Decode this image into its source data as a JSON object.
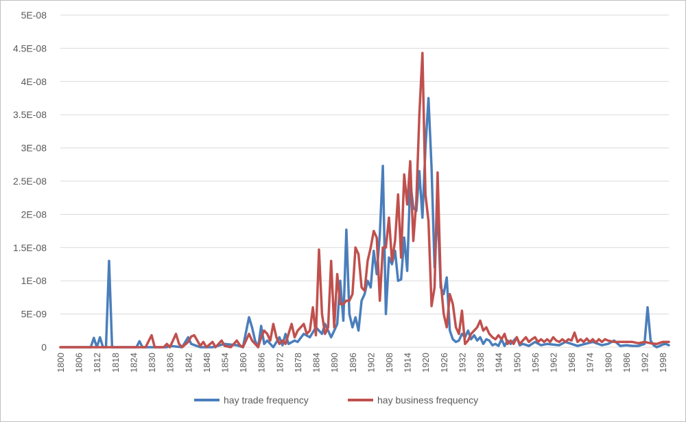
{
  "chart_data": {
    "type": "line",
    "title": "",
    "xlabel": "",
    "ylabel": "",
    "xlim": [
      1800,
      2000
    ],
    "ylim": [
      0,
      5e-08
    ],
    "grid": true,
    "legend_position": "bottom",
    "y_ticks": [
      {
        "value": 0,
        "label": "0"
      },
      {
        "value": 5e-09,
        "label": "5E-09"
      },
      {
        "value": 1e-08,
        "label": "1E-08"
      },
      {
        "value": 1.5e-08,
        "label": "1.5E-08"
      },
      {
        "value": 2e-08,
        "label": "2E-08"
      },
      {
        "value": 2.5e-08,
        "label": "2.5E-08"
      },
      {
        "value": 3e-08,
        "label": "3E-08"
      },
      {
        "value": 3.5e-08,
        "label": "3.5E-08"
      },
      {
        "value": 4e-08,
        "label": "4E-08"
      },
      {
        "value": 4.5e-08,
        "label": "4.5E-08"
      },
      {
        "value": 5e-08,
        "label": "5E-08"
      }
    ],
    "x_ticks": [
      "1800",
      "1806",
      "1812",
      "1818",
      "1824",
      "1830",
      "1836",
      "1842",
      "1848",
      "1854",
      "1860",
      "1866",
      "1872",
      "1878",
      "1884",
      "1890",
      "1896",
      "1902",
      "1908",
      "1914",
      "1920",
      "1926",
      "1932",
      "1938",
      "1944",
      "1950",
      "1956",
      "1962",
      "1968",
      "1974",
      "1980",
      "1986",
      "1992",
      "1998"
    ],
    "series": [
      {
        "name": "hay trade frequency",
        "color": "#4a7ebb",
        "points": [
          [
            1800,
            0
          ],
          [
            1810,
            0
          ],
          [
            1811,
            1.4e-09
          ],
          [
            1812,
            0
          ],
          [
            1813,
            1.5e-09
          ],
          [
            1814,
            0
          ],
          [
            1815,
            0
          ],
          [
            1816,
            1.3e-08
          ],
          [
            1817,
            0
          ],
          [
            1818,
            0
          ],
          [
            1825,
            0
          ],
          [
            1826,
            9e-10
          ],
          [
            1827,
            0
          ],
          [
            1835,
            0
          ],
          [
            1836,
            2e-10
          ],
          [
            1840,
            0
          ],
          [
            1842,
            1.5e-09
          ],
          [
            1843,
            5e-10
          ],
          [
            1846,
            0
          ],
          [
            1850,
            0
          ],
          [
            1854,
            5e-10
          ],
          [
            1858,
            3e-10
          ],
          [
            1860,
            0
          ],
          [
            1862,
            4.5e-09
          ],
          [
            1863,
            3e-09
          ],
          [
            1864,
            1e-09
          ],
          [
            1865,
            0
          ],
          [
            1866,
            3.2e-09
          ],
          [
            1867,
            5e-10
          ],
          [
            1868,
            1e-09
          ],
          [
            1870,
            0
          ],
          [
            1872,
            1.5e-09
          ],
          [
            1873,
            3e-10
          ],
          [
            1874,
            2e-09
          ],
          [
            1875,
            5e-10
          ],
          [
            1877,
            1e-09
          ],
          [
            1878,
            8e-10
          ],
          [
            1880,
            2e-09
          ],
          [
            1882,
            1.5e-09
          ],
          [
            1884,
            3e-09
          ],
          [
            1886,
            2e-09
          ],
          [
            1887,
            3.5e-09
          ],
          [
            1888,
            2.5e-09
          ],
          [
            1889,
            1.5e-09
          ],
          [
            1890,
            2.5e-09
          ],
          [
            1891,
            3.5e-09
          ],
          [
            1892,
            1e-08
          ],
          [
            1893,
            4e-09
          ],
          [
            1894,
            1.77e-08
          ],
          [
            1895,
            5e-09
          ],
          [
            1896,
            3e-09
          ],
          [
            1897,
            4.5e-09
          ],
          [
            1898,
            2.5e-09
          ],
          [
            1899,
            7e-09
          ],
          [
            1900,
            8e-09
          ],
          [
            1901,
            1e-08
          ],
          [
            1902,
            9e-09
          ],
          [
            1903,
            1.45e-08
          ],
          [
            1904,
            1.1e-08
          ],
          [
            1905,
            1.7e-08
          ],
          [
            1906,
            2.73e-08
          ],
          [
            1907,
            5e-09
          ],
          [
            1908,
            1.35e-08
          ],
          [
            1909,
            1.25e-08
          ],
          [
            1910,
            1.45e-08
          ],
          [
            1911,
            1e-08
          ],
          [
            1912,
            1.02e-08
          ],
          [
            1913,
            1.65e-08
          ],
          [
            1914,
            1.15e-08
          ],
          [
            1915,
            2.5e-08
          ],
          [
            1916,
            2.1e-08
          ],
          [
            1917,
            2.05e-08
          ],
          [
            1918,
            2.65e-08
          ],
          [
            1919,
            1.95e-08
          ],
          [
            1920,
            3e-08
          ],
          [
            1921,
            3.75e-08
          ],
          [
            1922,
            2.7e-08
          ],
          [
            1923,
            1.2e-08
          ],
          [
            1924,
            2.1e-08
          ],
          [
            1925,
            9e-09
          ],
          [
            1926,
            8e-09
          ],
          [
            1927,
            1.05e-08
          ],
          [
            1928,
            2.5e-09
          ],
          [
            1929,
            1.2e-09
          ],
          [
            1930,
            8e-10
          ],
          [
            1931,
            1e-09
          ],
          [
            1932,
            2e-09
          ],
          [
            1933,
            1.5e-09
          ],
          [
            1934,
            2.5e-09
          ],
          [
            1935,
            1.2e-09
          ],
          [
            1936,
            1.8e-09
          ],
          [
            1937,
            1e-09
          ],
          [
            1938,
            1.5e-09
          ],
          [
            1939,
            5e-10
          ],
          [
            1940,
            1.2e-09
          ],
          [
            1941,
            1e-09
          ],
          [
            1942,
            3e-10
          ],
          [
            1943,
            5e-10
          ],
          [
            1944,
            2e-10
          ],
          [
            1945,
            1.2e-09
          ],
          [
            1946,
            2e-10
          ],
          [
            1947,
            1e-09
          ],
          [
            1948,
            5e-10
          ],
          [
            1950,
            1.5e-09
          ],
          [
            1951,
            3e-10
          ],
          [
            1952,
            5e-10
          ],
          [
            1954,
            2e-10
          ],
          [
            1956,
            8e-10
          ],
          [
            1958,
            3e-10
          ],
          [
            1960,
            5e-10
          ],
          [
            1964,
            3e-10
          ],
          [
            1966,
            8e-10
          ],
          [
            1970,
            2e-10
          ],
          [
            1975,
            8e-10
          ],
          [
            1978,
            3e-10
          ],
          [
            1980,
            5e-10
          ],
          [
            1982,
            1e-09
          ],
          [
            1984,
            2e-10
          ],
          [
            1986,
            3e-10
          ],
          [
            1988,
            2e-10
          ],
          [
            1990,
            2e-10
          ],
          [
            1992,
            5e-10
          ],
          [
            1993,
            6e-09
          ],
          [
            1994,
            1e-09
          ],
          [
            1995,
            3e-10
          ],
          [
            1996,
            0
          ],
          [
            1997,
            2e-10
          ],
          [
            1998,
            4e-10
          ],
          [
            1999,
            5e-10
          ],
          [
            2000,
            3e-10
          ]
        ]
      },
      {
        "name": "hay business frequency",
        "color": "#c0504d",
        "points": [
          [
            1800,
            0
          ],
          [
            1828,
            0
          ],
          [
            1830,
            1.8e-09
          ],
          [
            1831,
            0
          ],
          [
            1834,
            0
          ],
          [
            1835,
            5e-10
          ],
          [
            1836,
            0
          ],
          [
            1838,
            2e-09
          ],
          [
            1839,
            5e-10
          ],
          [
            1840,
            0
          ],
          [
            1842,
            8e-10
          ],
          [
            1843,
            1.6e-09
          ],
          [
            1844,
            1.8e-09
          ],
          [
            1845,
            1e-09
          ],
          [
            1846,
            2e-10
          ],
          [
            1847,
            8e-10
          ],
          [
            1848,
            0
          ],
          [
            1850,
            8e-10
          ],
          [
            1851,
            0
          ],
          [
            1853,
            1e-09
          ],
          [
            1854,
            2e-10
          ],
          [
            1856,
            0
          ],
          [
            1858,
            1e-09
          ],
          [
            1859,
            3e-10
          ],
          [
            1860,
            0
          ],
          [
            1862,
            2e-09
          ],
          [
            1863,
            1e-09
          ],
          [
            1865,
            0
          ],
          [
            1866,
            1.5e-09
          ],
          [
            1867,
            2.5e-09
          ],
          [
            1868,
            2e-09
          ],
          [
            1869,
            1e-09
          ],
          [
            1870,
            3.5e-09
          ],
          [
            1871,
            1.5e-09
          ],
          [
            1872,
            5e-10
          ],
          [
            1873,
            1e-09
          ],
          [
            1874,
            5e-10
          ],
          [
            1875,
            2e-09
          ],
          [
            1876,
            3.5e-09
          ],
          [
            1877,
            1.5e-09
          ],
          [
            1878,
            2.5e-09
          ],
          [
            1879,
            3e-09
          ],
          [
            1880,
            3.5e-09
          ],
          [
            1881,
            2e-09
          ],
          [
            1882,
            2.5e-09
          ],
          [
            1883,
            6e-09
          ],
          [
            1884,
            1.8e-09
          ],
          [
            1885,
            1.47e-08
          ],
          [
            1886,
            5e-09
          ],
          [
            1887,
            2e-09
          ],
          [
            1888,
            3e-09
          ],
          [
            1889,
            1.3e-08
          ],
          [
            1890,
            3e-09
          ],
          [
            1891,
            1.1e-08
          ],
          [
            1892,
            6.5e-09
          ],
          [
            1893,
            6.5e-09
          ],
          [
            1894,
            7e-09
          ],
          [
            1895,
            7e-09
          ],
          [
            1896,
            8e-09
          ],
          [
            1897,
            1.5e-08
          ],
          [
            1898,
            1.4e-08
          ],
          [
            1899,
            9e-09
          ],
          [
            1900,
            8.5e-09
          ],
          [
            1901,
            1.3e-08
          ],
          [
            1902,
            1.5e-08
          ],
          [
            1903,
            1.75e-08
          ],
          [
            1904,
            1.65e-08
          ],
          [
            1905,
            7e-09
          ],
          [
            1906,
            1.5e-08
          ],
          [
            1907,
            1.5e-08
          ],
          [
            1908,
            1.95e-08
          ],
          [
            1909,
            1.3e-08
          ],
          [
            1910,
            1.6e-08
          ],
          [
            1911,
            2.3e-08
          ],
          [
            1912,
            1.35e-08
          ],
          [
            1913,
            2.6e-08
          ],
          [
            1914,
            2.15e-08
          ],
          [
            1915,
            2.8e-08
          ],
          [
            1916,
            1.6e-08
          ],
          [
            1917,
            2.2e-08
          ],
          [
            1918,
            3.5e-08
          ],
          [
            1919,
            4.43e-08
          ],
          [
            1920,
            2.3e-08
          ],
          [
            1921,
            1.9e-08
          ],
          [
            1922,
            6.2e-09
          ],
          [
            1923,
            9e-09
          ],
          [
            1924,
            2.63e-08
          ],
          [
            1925,
            1e-08
          ],
          [
            1926,
            5e-09
          ],
          [
            1927,
            3e-09
          ],
          [
            1928,
            8e-09
          ],
          [
            1929,
            6.5e-09
          ],
          [
            1930,
            3e-09
          ],
          [
            1931,
            2e-09
          ],
          [
            1932,
            5.5e-09
          ],
          [
            1933,
            5e-10
          ],
          [
            1934,
            1e-09
          ],
          [
            1935,
            2e-09
          ],
          [
            1936,
            2.5e-09
          ],
          [
            1937,
            3e-09
          ],
          [
            1938,
            4e-09
          ],
          [
            1939,
            2.5e-09
          ],
          [
            1940,
            3e-09
          ],
          [
            1941,
            2e-09
          ],
          [
            1942,
            1.5e-09
          ],
          [
            1943,
            1.2e-09
          ],
          [
            1944,
            1.8e-09
          ],
          [
            1945,
            1.2e-09
          ],
          [
            1946,
            2e-09
          ],
          [
            1947,
            5e-10
          ],
          [
            1948,
            1e-09
          ],
          [
            1949,
            5e-10
          ],
          [
            1950,
            1.5e-09
          ],
          [
            1951,
            5e-10
          ],
          [
            1952,
            1e-09
          ],
          [
            1953,
            1.5e-09
          ],
          [
            1954,
            8e-10
          ],
          [
            1955,
            1.2e-09
          ],
          [
            1956,
            1.5e-09
          ],
          [
            1957,
            8e-10
          ],
          [
            1958,
            1.2e-09
          ],
          [
            1959,
            8e-10
          ],
          [
            1960,
            1.2e-09
          ],
          [
            1961,
            8e-10
          ],
          [
            1962,
            1.5e-09
          ],
          [
            1963,
            1e-09
          ],
          [
            1964,
            8e-10
          ],
          [
            1965,
            1.2e-09
          ],
          [
            1966,
            8e-10
          ],
          [
            1967,
            1.2e-09
          ],
          [
            1968,
            1e-09
          ],
          [
            1969,
            2.2e-09
          ],
          [
            1970,
            8e-10
          ],
          [
            1971,
            1.2e-09
          ],
          [
            1972,
            8e-10
          ],
          [
            1973,
            1.3e-09
          ],
          [
            1974,
            8e-10
          ],
          [
            1975,
            1.2e-09
          ],
          [
            1976,
            7e-10
          ],
          [
            1977,
            1.2e-09
          ],
          [
            1978,
            8e-10
          ],
          [
            1979,
            1.2e-09
          ],
          [
            1980,
            1e-09
          ],
          [
            1982,
            8e-10
          ],
          [
            1984,
            8e-10
          ],
          [
            1986,
            8e-10
          ],
          [
            1988,
            8e-10
          ],
          [
            1990,
            6e-10
          ],
          [
            1992,
            8e-10
          ],
          [
            1994,
            6e-10
          ],
          [
            1996,
            5e-10
          ],
          [
            1998,
            8e-10
          ],
          [
            2000,
            8e-10
          ]
        ]
      }
    ]
  }
}
